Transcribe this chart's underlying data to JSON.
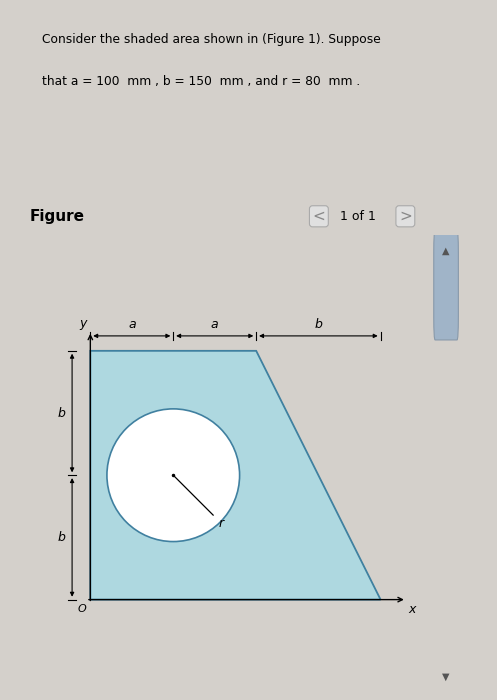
{
  "header_line1": "Consider the shaded area shown in (Figure 1). Suppose",
  "header_line2": "that a = 100  mm , b = 150  mm , and r = 80  mm .",
  "header_underline_text": "Figure 1",
  "figure_label": "Figure",
  "page_label": "1 of 1",
  "header_bg": "#c5dce8",
  "outer_bg": "#d4d0cb",
  "white_panel_bg": "#f5f4f0",
  "scroll_bg": "#c8c8c8",
  "scroll_thumb": "#a0b4c8",
  "a": 100,
  "b": 150,
  "r": 80,
  "shape_color": "#aed8e0",
  "shape_edge_color": "#4080a0",
  "circle_color": "#ffffff",
  "circle_edge_color": "#4080a0",
  "dim_color": "#000000"
}
